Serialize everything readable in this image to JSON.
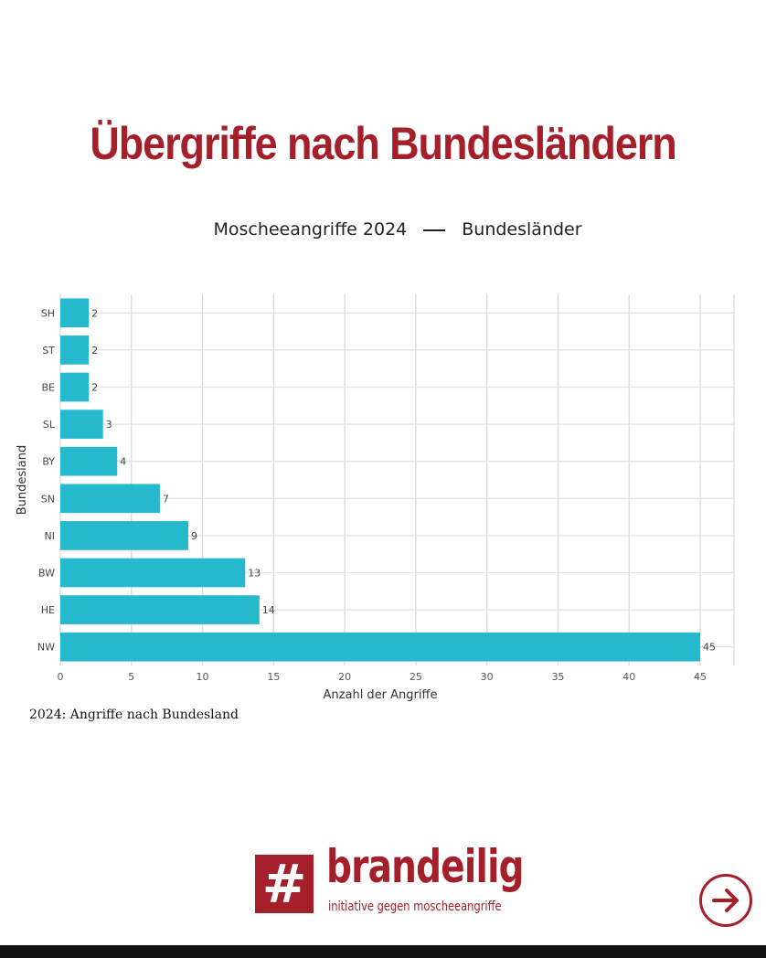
{
  "headline": "Übergriffe nach Bundesländern",
  "subtitle": {
    "left": "Moscheeangriffe 2024",
    "right": "Bundesländer"
  },
  "caption": "2024: Angriffe nach Bundesland",
  "logo": {
    "mark": "#",
    "name": "brandeilig",
    "tagline": "initiative gegen moscheeangriffe"
  },
  "colors": {
    "accent": "#a51f2b",
    "bar": "#26b8cd"
  },
  "chart_data": {
    "type": "bar",
    "orientation": "horizontal",
    "categories": [
      "SH",
      "ST",
      "BE",
      "SL",
      "BY",
      "SN",
      "NI",
      "BW",
      "HE",
      "NW"
    ],
    "values": [
      2,
      2,
      2,
      3,
      4,
      7,
      9,
      13,
      14,
      45
    ],
    "xlabel": "Anzahl der Angriffe",
    "ylabel": "Bundesland",
    "xlim": [
      0,
      45
    ],
    "xticks": [
      0,
      5,
      10,
      15,
      20,
      25,
      30,
      35,
      40,
      45
    ],
    "grid": true,
    "data_labels": true
  }
}
